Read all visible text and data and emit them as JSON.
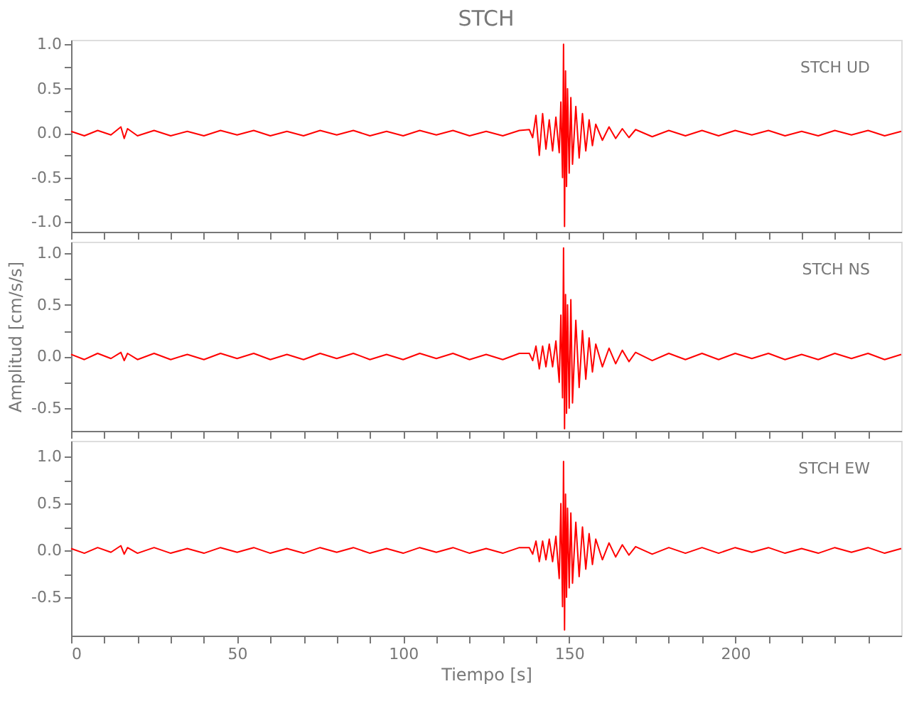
{
  "chart_data": [
    {
      "type": "line",
      "title": "STCH",
      "annotations": [
        "STCH   UD"
      ],
      "tick_labels": "y",
      "grid": false,
      "marker": "none",
      "line_style": "solid",
      "x": [
        0,
        4,
        8,
        12,
        15,
        16,
        17,
        20,
        25,
        30,
        35,
        40,
        45,
        50,
        55,
        60,
        65,
        70,
        75,
        80,
        85,
        90,
        95,
        100,
        105,
        110,
        115,
        120,
        125,
        130,
        135,
        138,
        139,
        140,
        141,
        142,
        143,
        144,
        145,
        146,
        147,
        147.5,
        148,
        148.3,
        148.6,
        148.9,
        149.2,
        149.5,
        150,
        150.5,
        151,
        152,
        153,
        154,
        155,
        156,
        157,
        158,
        160,
        162,
        164,
        166,
        168,
        170,
        175,
        180,
        185,
        190,
        195,
        200,
        205,
        210,
        215,
        220,
        225,
        230,
        235,
        240,
        245,
        250
      ],
      "series": [
        {
          "color": "#ff0000",
          "values": [
            0.02,
            -0.03,
            0.03,
            -0.02,
            0.07,
            -0.06,
            0.05,
            -0.03,
            0.03,
            -0.03,
            0.02,
            -0.03,
            0.03,
            -0.02,
            0.03,
            -0.03,
            0.02,
            -0.03,
            0.03,
            -0.02,
            0.03,
            -0.03,
            0.02,
            -0.03,
            0.03,
            -0.02,
            0.03,
            -0.03,
            0.02,
            -0.03,
            0.03,
            0.04,
            -0.05,
            0.2,
            -0.25,
            0.22,
            -0.18,
            0.15,
            -0.2,
            0.18,
            -0.22,
            0.35,
            -0.5,
            1.0,
            -1.05,
            0.7,
            -0.6,
            0.5,
            -0.45,
            0.4,
            -0.35,
            0.3,
            -0.28,
            0.22,
            -0.2,
            0.15,
            -0.14,
            0.1,
            -0.08,
            0.07,
            -0.06,
            0.05,
            -0.05,
            0.04,
            -0.04,
            0.03,
            -0.03,
            0.03,
            -0.03,
            0.03,
            -0.02,
            0.03,
            -0.03,
            0.02,
            -0.03,
            0.03,
            -0.02,
            0.03,
            -0.03,
            0.02
          ]
        }
      ],
      "xlim": [
        0,
        250
      ],
      "xticks": [
        0,
        {
          "value": 10,
          "label": null
        },
        {
          "value": 20,
          "label": null
        },
        {
          "value": 30,
          "label": null
        },
        {
          "value": 40,
          "label": null
        },
        50,
        {
          "value": 60,
          "label": null
        },
        {
          "value": 70,
          "label": null
        },
        {
          "value": 80,
          "label": null
        },
        {
          "value": 90,
          "label": null
        },
        100,
        {
          "value": 110,
          "label": null
        },
        {
          "value": 120,
          "label": null
        },
        {
          "value": 130,
          "label": null
        },
        {
          "value": 140,
          "label": null
        },
        150,
        {
          "value": 160,
          "label": null
        },
        {
          "value": 170,
          "label": null
        },
        {
          "value": 180,
          "label": null
        },
        {
          "value": 190,
          "label": null
        },
        200,
        {
          "value": 210,
          "label": null
        },
        {
          "value": 220,
          "label": null
        },
        {
          "value": 230,
          "label": null
        },
        {
          "value": 240,
          "label": null
        }
      ],
      "ylim": [
        -1.11,
        1.05
      ],
      "yticks": [
        {
          "value": -1,
          "label": "-1.0"
        },
        {
          "value": -0.75,
          "label": null
        },
        {
          "value": -0.5,
          "label": "-0.5"
        },
        {
          "value": -0.25,
          "label": null
        },
        {
          "value": 0,
          "label": "0.0"
        },
        {
          "value": 0.25,
          "label": null
        },
        {
          "value": 0.5,
          "label": "0.5"
        },
        {
          "value": 0.75,
          "label": null
        },
        {
          "value": 1,
          "label": "1.0"
        }
      ]
    },
    {
      "type": "line",
      "ylabel": "Amplitud  [cm/s/s]",
      "annotations": [
        "STCH   NS"
      ],
      "tick_labels": "y",
      "grid": false,
      "marker": "none",
      "line_style": "solid",
      "x": [
        0,
        4,
        8,
        12,
        15,
        16,
        17,
        20,
        25,
        30,
        35,
        40,
        45,
        50,
        55,
        60,
        65,
        70,
        75,
        80,
        85,
        90,
        95,
        100,
        105,
        110,
        115,
        120,
        125,
        130,
        135,
        138,
        139,
        140,
        141,
        142,
        143,
        144,
        145,
        146,
        147,
        147.5,
        148,
        148.3,
        148.6,
        148.9,
        149.2,
        149.5,
        150,
        150.5,
        151,
        152,
        153,
        154,
        155,
        156,
        157,
        158,
        160,
        162,
        164,
        166,
        168,
        170,
        175,
        180,
        185,
        190,
        195,
        200,
        205,
        210,
        215,
        220,
        225,
        230,
        235,
        240,
        245,
        250
      ],
      "series": [
        {
          "color": "#ff0000",
          "values": [
            0.02,
            -0.03,
            0.03,
            -0.02,
            0.04,
            -0.04,
            0.03,
            -0.03,
            0.03,
            -0.03,
            0.02,
            -0.03,
            0.03,
            -0.02,
            0.03,
            -0.03,
            0.02,
            -0.03,
            0.03,
            -0.02,
            0.03,
            -0.03,
            0.02,
            -0.03,
            0.03,
            -0.02,
            0.03,
            -0.03,
            0.02,
            -0.03,
            0.03,
            0.03,
            -0.04,
            0.1,
            -0.12,
            0.1,
            -0.1,
            0.12,
            -0.1,
            0.15,
            -0.25,
            0.4,
            -0.4,
            1.05,
            -0.7,
            0.6,
            -0.55,
            0.5,
            -0.5,
            0.55,
            -0.45,
            0.35,
            -0.3,
            0.25,
            -0.22,
            0.18,
            -0.15,
            0.12,
            -0.1,
            0.08,
            -0.07,
            0.06,
            -0.05,
            0.04,
            -0.04,
            0.03,
            -0.03,
            0.03,
            -0.03,
            0.03,
            -0.02,
            0.03,
            -0.03,
            0.02,
            -0.03,
            0.03,
            -0.02,
            0.03,
            -0.03,
            0.02
          ]
        }
      ],
      "xlim": [
        0,
        250
      ],
      "xticks": [
        0,
        {
          "value": 10,
          "label": null
        },
        {
          "value": 20,
          "label": null
        },
        {
          "value": 30,
          "label": null
        },
        {
          "value": 40,
          "label": null
        },
        50,
        {
          "value": 60,
          "label": null
        },
        {
          "value": 70,
          "label": null
        },
        {
          "value": 80,
          "label": null
        },
        {
          "value": 90,
          "label": null
        },
        100,
        {
          "value": 110,
          "label": null
        },
        {
          "value": 120,
          "label": null
        },
        {
          "value": 130,
          "label": null
        },
        {
          "value": 140,
          "label": null
        },
        150,
        {
          "value": 160,
          "label": null
        },
        {
          "value": 170,
          "label": null
        },
        {
          "value": 180,
          "label": null
        },
        {
          "value": 190,
          "label": null
        },
        200,
        {
          "value": 210,
          "label": null
        },
        {
          "value": 220,
          "label": null
        },
        {
          "value": 230,
          "label": null
        },
        {
          "value": 240,
          "label": null
        }
      ],
      "ylim": [
        -0.72,
        1.11
      ],
      "yticks": [
        {
          "value": -0.5,
          "label": "-0.5"
        },
        {
          "value": -0.25,
          "label": null
        },
        {
          "value": 0,
          "label": "0.0"
        },
        {
          "value": 0.25,
          "label": null
        },
        {
          "value": 0.5,
          "label": "0.5"
        },
        {
          "value": 0.75,
          "label": null
        },
        {
          "value": 1,
          "label": "1.0"
        }
      ]
    },
    {
      "type": "line",
      "xlabel": "Tiempo  [s]",
      "annotations": [
        "STCH   EW"
      ],
      "grid": false,
      "marker": "none",
      "line_style": "solid",
      "x": [
        0,
        4,
        8,
        12,
        15,
        16,
        17,
        20,
        25,
        30,
        35,
        40,
        45,
        50,
        55,
        60,
        65,
        70,
        75,
        80,
        85,
        90,
        95,
        100,
        105,
        110,
        115,
        120,
        125,
        130,
        135,
        138,
        139,
        140,
        141,
        142,
        143,
        144,
        145,
        146,
        147,
        147.5,
        148,
        148.3,
        148.6,
        148.9,
        149.2,
        149.5,
        150,
        150.5,
        151,
        152,
        153,
        154,
        155,
        156,
        157,
        158,
        160,
        162,
        164,
        166,
        168,
        170,
        175,
        180,
        185,
        190,
        195,
        200,
        205,
        210,
        215,
        220,
        225,
        230,
        235,
        240,
        245,
        250
      ],
      "series": [
        {
          "color": "#ff0000",
          "values": [
            0.02,
            -0.03,
            0.03,
            -0.02,
            0.05,
            -0.04,
            0.03,
            -0.03,
            0.03,
            -0.03,
            0.02,
            -0.03,
            0.03,
            -0.02,
            0.03,
            -0.03,
            0.02,
            -0.03,
            0.03,
            -0.02,
            0.03,
            -0.03,
            0.02,
            -0.03,
            0.03,
            -0.02,
            0.03,
            -0.03,
            0.02,
            -0.03,
            0.03,
            0.03,
            -0.04,
            0.1,
            -0.12,
            0.1,
            -0.1,
            0.12,
            -0.12,
            0.15,
            -0.3,
            0.5,
            -0.6,
            0.95,
            -0.85,
            0.6,
            -0.5,
            0.45,
            -0.4,
            0.4,
            -0.35,
            0.3,
            -0.28,
            0.25,
            -0.2,
            0.18,
            -0.15,
            0.12,
            -0.1,
            0.08,
            -0.07,
            0.06,
            -0.05,
            0.04,
            -0.04,
            0.03,
            -0.03,
            0.03,
            -0.03,
            0.03,
            -0.02,
            0.03,
            -0.03,
            0.02,
            -0.03,
            0.03,
            -0.02,
            0.03,
            -0.03,
            0.02
          ]
        }
      ],
      "xlim": [
        0,
        250
      ],
      "xticks": [
        0,
        {
          "value": 10,
          "label": null
        },
        {
          "value": 20,
          "label": null
        },
        {
          "value": 30,
          "label": null
        },
        {
          "value": 40,
          "label": null
        },
        50,
        {
          "value": 60,
          "label": null
        },
        {
          "value": 70,
          "label": null
        },
        {
          "value": 80,
          "label": null
        },
        {
          "value": 90,
          "label": null
        },
        100,
        {
          "value": 110,
          "label": null
        },
        {
          "value": 120,
          "label": null
        },
        {
          "value": 130,
          "label": null
        },
        {
          "value": 140,
          "label": null
        },
        150,
        {
          "value": 160,
          "label": null
        },
        {
          "value": 170,
          "label": null
        },
        {
          "value": 180,
          "label": null
        },
        {
          "value": 190,
          "label": null
        },
        200,
        {
          "value": 210,
          "label": null
        },
        {
          "value": 220,
          "label": null
        },
        {
          "value": 230,
          "label": null
        },
        {
          "value": 240,
          "label": null
        }
      ],
      "ylim": [
        -0.91,
        1.17
      ],
      "yticks": [
        {
          "value": -0.5,
          "label": "-0.5"
        },
        {
          "value": -0.25,
          "label": null
        },
        {
          "value": 0,
          "label": "0.0"
        },
        {
          "value": 0.25,
          "label": null
        },
        {
          "value": 0.5,
          "label": "0.5"
        },
        {
          "value": 0.75,
          "label": null
        },
        {
          "value": 1,
          "label": "1.0"
        }
      ]
    }
  ]
}
